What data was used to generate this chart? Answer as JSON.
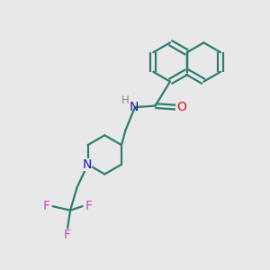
{
  "bg_color": "#e8e8e8",
  "bond_color": "#2d7d6e",
  "N_color": "#1a1acc",
  "O_color": "#cc1a1a",
  "F_color": "#cc44cc",
  "H_color": "#888888",
  "line_width": 1.6,
  "fig_size": [
    3.0,
    3.0
  ],
  "dpi": 100,
  "xlim": [
    0,
    10
  ],
  "ylim": [
    0,
    10
  ]
}
